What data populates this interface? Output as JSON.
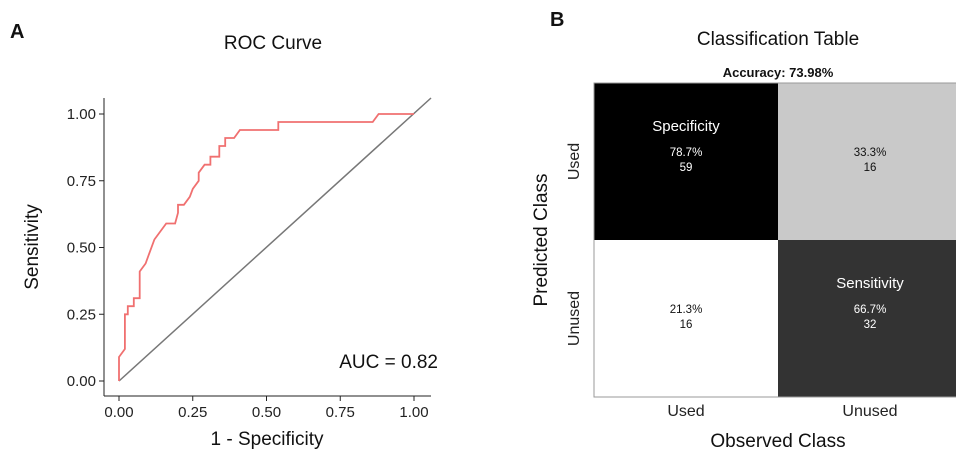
{
  "panels": {
    "a_label": "A",
    "b_label": "B"
  },
  "chart_data": [
    {
      "type": "line",
      "title": "ROC Curve",
      "xlabel": "1 - Specificity",
      "ylabel": "Sensitivity",
      "xlim": [
        0,
        1
      ],
      "ylim": [
        0,
        1
      ],
      "x_ticks": [
        "0.00",
        "0.25",
        "0.50",
        "0.75",
        "1.00"
      ],
      "y_ticks": [
        "0.00",
        "0.25",
        "0.50",
        "0.75",
        "1.00"
      ],
      "annotation": "AUC = 0.82",
      "grid": false,
      "colors": {
        "curve": "#f07070",
        "diagonal": "#777777"
      },
      "series": [
        {
          "name": "",
          "x": [
            0.0,
            0.0,
            0.02,
            0.02,
            0.03,
            0.03,
            0.05,
            0.05,
            0.07,
            0.07,
            0.09,
            0.1,
            0.12,
            0.12,
            0.14,
            0.16,
            0.17,
            0.19,
            0.2,
            0.2,
            0.22,
            0.24,
            0.25,
            0.27,
            0.27,
            0.29,
            0.31,
            0.31,
            0.34,
            0.34,
            0.36,
            0.36,
            0.39,
            0.41,
            0.44,
            0.51,
            0.54,
            0.54,
            0.58,
            0.68,
            0.71,
            0.86,
            0.88,
            0.88,
            1.0
          ],
          "y": [
            0.0,
            0.09,
            0.12,
            0.25,
            0.25,
            0.28,
            0.28,
            0.31,
            0.31,
            0.41,
            0.44,
            0.47,
            0.53,
            0.53,
            0.56,
            0.59,
            0.59,
            0.59,
            0.63,
            0.66,
            0.66,
            0.69,
            0.72,
            0.75,
            0.78,
            0.81,
            0.81,
            0.84,
            0.84,
            0.88,
            0.88,
            0.91,
            0.91,
            0.94,
            0.94,
            0.94,
            0.94,
            0.97,
            0.97,
            0.97,
            0.97,
            0.97,
            1.0,
            1.0,
            1.0
          ]
        }
      ]
    },
    {
      "type": "heatmap",
      "title": "Classification Table",
      "subtitle": "Accuracy: 73.98%",
      "xlabel": "Observed Class",
      "ylabel": "Predicted Class",
      "x_categories": [
        "Used",
        "Unused"
      ],
      "y_categories": [
        "Used",
        "Unused"
      ],
      "cells": [
        {
          "row": 0,
          "col": 0,
          "label": "Specificity",
          "percent": "78.7%",
          "count": "59",
          "value": 0.787,
          "fill": "#000000",
          "text_color": "#ffffff"
        },
        {
          "row": 0,
          "col": 1,
          "label": "",
          "percent": "33.3%",
          "count": "16",
          "value": 0.333,
          "fill": "#c9c9c9",
          "text_color": "#111111"
        },
        {
          "row": 1,
          "col": 0,
          "label": "",
          "percent": "21.3%",
          "count": "16",
          "value": 0.213,
          "fill": "#ffffff",
          "text_color": "#111111"
        },
        {
          "row": 1,
          "col": 1,
          "label": "Sensitivity",
          "percent": "66.7%",
          "count": "32",
          "value": 0.667,
          "fill": "#333333",
          "text_color": "#ffffff"
        }
      ]
    }
  ]
}
